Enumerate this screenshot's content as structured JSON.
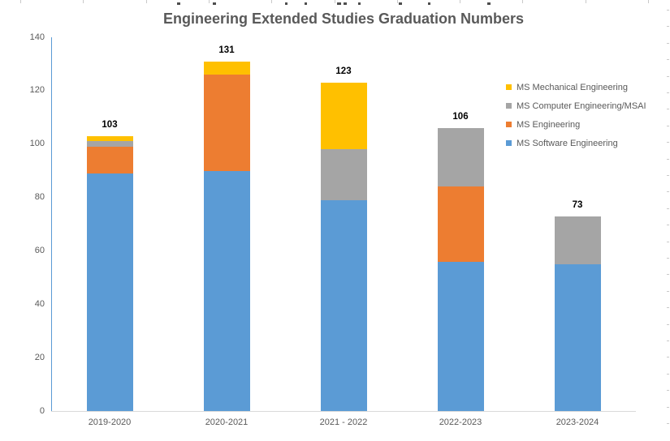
{
  "window": {
    "background": "#ffffff"
  },
  "chart_data": {
    "type": "bar",
    "stacked": true,
    "title": "Engineering Extended Studies Graduation Numbers",
    "categories": [
      "2019-2020",
      "2020-2021",
      "2021 - 2022",
      "2022-2023",
      "2023-2024"
    ],
    "series": [
      {
        "name": "MS Software Engineering",
        "color": "#5B9BD5",
        "values": [
          89,
          90,
          79,
          56,
          55
        ]
      },
      {
        "name": "MS Engineering",
        "color": "#ED7D31",
        "values": [
          10,
          36,
          0,
          28,
          0
        ]
      },
      {
        "name": "MS Computer Engineering/MSAI",
        "color": "#A5A5A5",
        "values": [
          2,
          0,
          19,
          22,
          18
        ]
      },
      {
        "name": "MS Mechanical Engineering",
        "color": "#FFC000",
        "values": [
          2,
          5,
          25,
          0,
          0
        ]
      }
    ],
    "totals": [
      103,
      131,
      123,
      106,
      73
    ],
    "y_ticks": [
      0,
      20,
      40,
      60,
      80,
      100,
      120,
      140
    ],
    "ylim": [
      0,
      140
    ],
    "xlabel": "",
    "ylabel": "",
    "grid": false,
    "legend_position": "right",
    "legend_order_top_to_bottom": [
      "MS Mechanical Engineering",
      "MS Computer Engineering/MSAI",
      "MS Engineering",
      "MS Software Engineering"
    ],
    "colors": {
      "title_text": "#595959",
      "axis_text": "#595959",
      "data_label_text": "#000000",
      "y_axis_line": "#5B9BD5",
      "x_axis_line": "#D9D9D9"
    }
  }
}
